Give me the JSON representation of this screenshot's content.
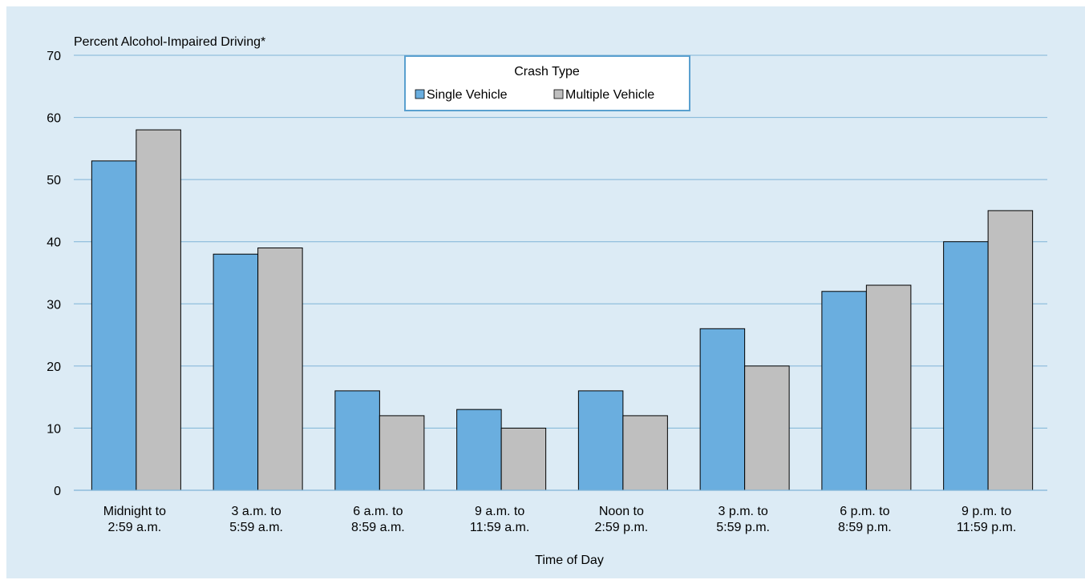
{
  "chart_data": {
    "type": "bar",
    "ylabel": "Percent Alcohol-Impaired Driving*",
    "xlabel": "Time of Day",
    "ylim": [
      0,
      70
    ],
    "yticks": [
      0,
      10,
      20,
      30,
      40,
      50,
      60,
      70
    ],
    "grid": true,
    "categories": [
      [
        "Midnight to",
        "2:59 a.m."
      ],
      [
        "3 a.m. to",
        "5:59 a.m."
      ],
      [
        "6 a.m. to",
        "8:59 a.m."
      ],
      [
        "9 a.m. to",
        "11:59 a.m."
      ],
      [
        "Noon to",
        "2:59 p.m."
      ],
      [
        "3 p.m. to",
        "5:59 p.m."
      ],
      [
        "6 p.m. to",
        "8:59 p.m."
      ],
      [
        "9 p.m. to",
        "11:59 p.m."
      ]
    ],
    "legend": {
      "title": "Crash Type",
      "placement": "top-center"
    },
    "series": [
      {
        "name": "Single Vehicle",
        "color": "#6aaedf",
        "values": [
          53,
          38,
          16,
          13,
          16,
          26,
          32,
          40
        ]
      },
      {
        "name": "Multiple Vehicle",
        "color": "#bfbfbf",
        "values": [
          58,
          39,
          12,
          10,
          12,
          20,
          33,
          45
        ]
      }
    ]
  },
  "colors": {
    "background": "#dcebf5",
    "gridline": "#7fb4d6",
    "legend_border": "#5aa0cf",
    "bar_outline": "#000000"
  }
}
